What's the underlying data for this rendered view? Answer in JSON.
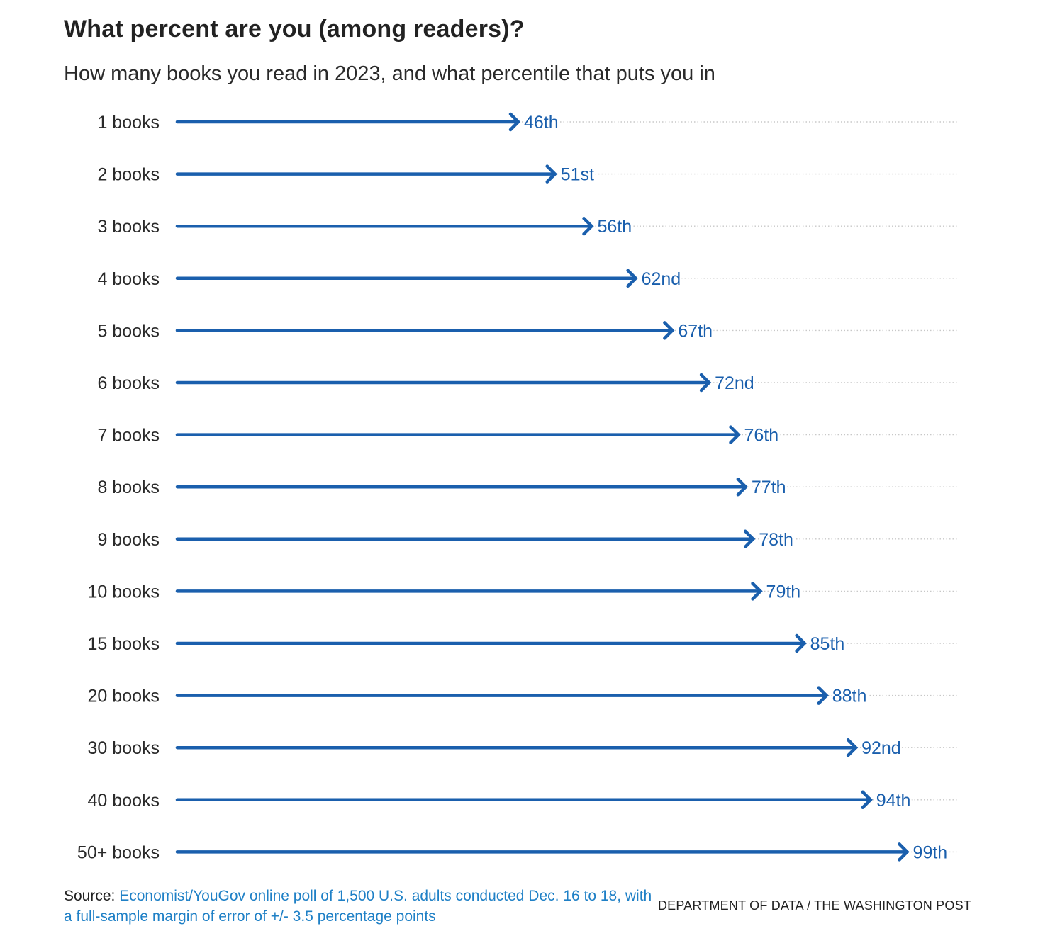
{
  "title": "What percent are you (among readers)?",
  "subtitle": "How many books you read in 2023, and what percentile that puts you in",
  "colors": {
    "arrow": "#1a5fad",
    "label": "#1a5fad",
    "grid": "#c8c8c8",
    "category_text": "#2a2a2a"
  },
  "chart_data": {
    "type": "bar",
    "title": "What percent are you (among readers)?",
    "subtitle": "How many books you read in 2023, and what percentile that puts you in",
    "xlabel": "",
    "ylabel": "",
    "xlim": [
      0,
      100
    ],
    "grid": "dotted horizontal row guides",
    "legend": "none",
    "categories": [
      "1 books",
      "2 books",
      "3 books",
      "4 books",
      "5 books",
      "6 books",
      "7 books",
      "8 books",
      "9 books",
      "10 books",
      "15 books",
      "20 books",
      "30 books",
      "40 books",
      "50+ books"
    ],
    "values": [
      46,
      51,
      56,
      62,
      67,
      72,
      76,
      77,
      78,
      79,
      85,
      88,
      92,
      94,
      99
    ],
    "value_labels": [
      "46th",
      "51st",
      "56th",
      "62nd",
      "67th",
      "72nd",
      "76th",
      "77th",
      "78th",
      "79th",
      "85th",
      "88th",
      "92nd",
      "94th",
      "99th"
    ]
  },
  "footer": {
    "source_prefix": "Source: ",
    "source_text": "Economist/YouGov online poll of 1,500 U.S. adults conducted Dec. 16 to 18, with a full-sample margin of error of +/- 3.5 percentage points",
    "credit": "DEPARTMENT OF DATA / THE WASHINGTON POST"
  }
}
